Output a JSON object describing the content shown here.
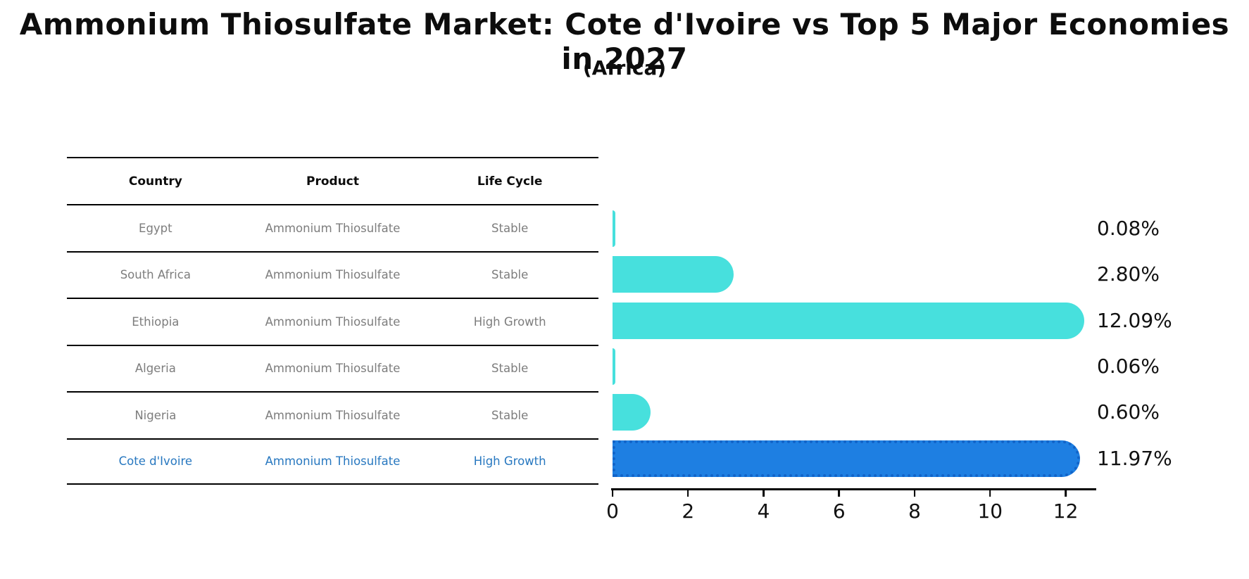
{
  "title": "Ammonium Thiosulfate Market: Cote d'Ivoire vs Top 5 Major Economies in 2027",
  "subtitle": "(Africa)",
  "table": {
    "headers": [
      "Country",
      "Product",
      "Life Cycle"
    ],
    "rows": [
      {
        "country": "Egypt",
        "product": "Ammonium Thiosulfate",
        "life_cycle": "Stable",
        "highlighted": false
      },
      {
        "country": "South Africa",
        "product": "Ammonium Thiosulfate",
        "life_cycle": "Stable",
        "highlighted": false
      },
      {
        "country": "Ethiopia",
        "product": "Ammonium Thiosulfate",
        "life_cycle": "High Growth",
        "highlighted": false
      },
      {
        "country": "Algeria",
        "product": "Ammonium Thiosulfate",
        "life_cycle": "Stable",
        "highlighted": false
      },
      {
        "country": "Nigeria",
        "product": "Ammonium Thiosulfate",
        "life_cycle": "Stable",
        "highlighted": false
      },
      {
        "country": "Cote d'Ivoire",
        "product": "Ammonium Thiosulfate",
        "life_cycle": "High Growth",
        "highlighted": true
      }
    ]
  },
  "chart_data": {
    "type": "bar",
    "orientation": "horizontal",
    "title": "Ammonium Thiosulfate Market: Cote d'Ivoire vs Top 5 Major Economies in 2027",
    "subtitle": "(Africa)",
    "categories": [
      "Egypt",
      "South Africa",
      "Ethiopia",
      "Algeria",
      "Nigeria",
      "Cote d'Ivoire"
    ],
    "values": [
      0.08,
      2.8,
      12.09,
      0.06,
      0.6,
      11.97
    ],
    "value_labels": [
      "0.08%",
      "2.80%",
      "12.09%",
      "0.06%",
      "0.60%",
      "11.97%"
    ],
    "x_ticks": [
      0,
      2,
      4,
      6,
      8,
      10,
      12
    ],
    "xlim": [
      0,
      12.75
    ],
    "xlabel": "",
    "ylabel": "",
    "grid": false,
    "legend": null,
    "bar_color": "#47e0dd",
    "highlight_index": 5,
    "highlight_color": "#1e7fe2",
    "highlight_border_color": "#1264c8"
  },
  "colors": {
    "highlight_text": "#2878c0",
    "table_text": "#7d7d7d",
    "axis_text": "#111111",
    "background": "#ffffff"
  }
}
